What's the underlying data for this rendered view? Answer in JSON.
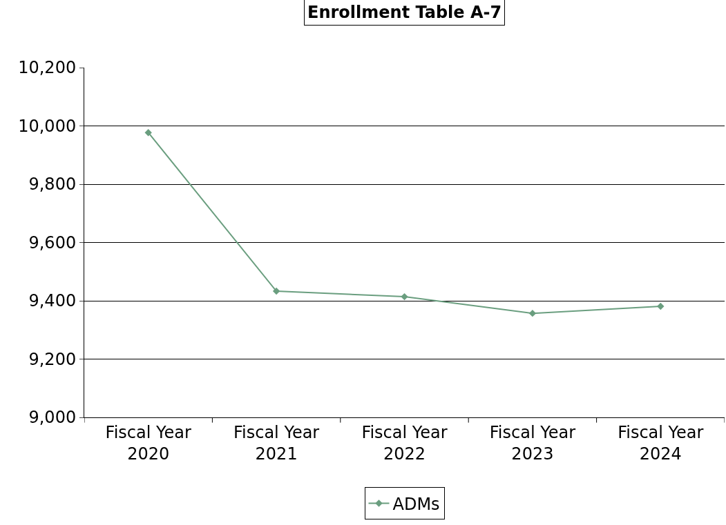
{
  "chart_data": {
    "type": "line",
    "title": "Enrollment Table A-7",
    "categories": [
      "Fiscal Year 2020",
      "Fiscal Year 2021",
      "Fiscal Year 2022",
      "Fiscal Year 2023",
      "Fiscal Year 2024"
    ],
    "series": [
      {
        "name": "ADMs",
        "color": "#6a9e7f",
        "values": [
          9977,
          9433,
          9414,
          9357,
          9381
        ]
      }
    ],
    "ylim": [
      9000,
      10200
    ],
    "yticks": [
      {
        "value": 9000,
        "label": "9,000"
      },
      {
        "value": 9200,
        "label": "9,200"
      },
      {
        "value": 9400,
        "label": "9,400"
      },
      {
        "value": 9600,
        "label": "9,600"
      },
      {
        "value": 9800,
        "label": "9,800"
      },
      {
        "value": 10000,
        "label": "10,000"
      },
      {
        "value": 10200,
        "label": "10,200"
      }
    ],
    "grid": "y",
    "legend": "bottom",
    "marker": "diamond",
    "line_style": "solid"
  }
}
